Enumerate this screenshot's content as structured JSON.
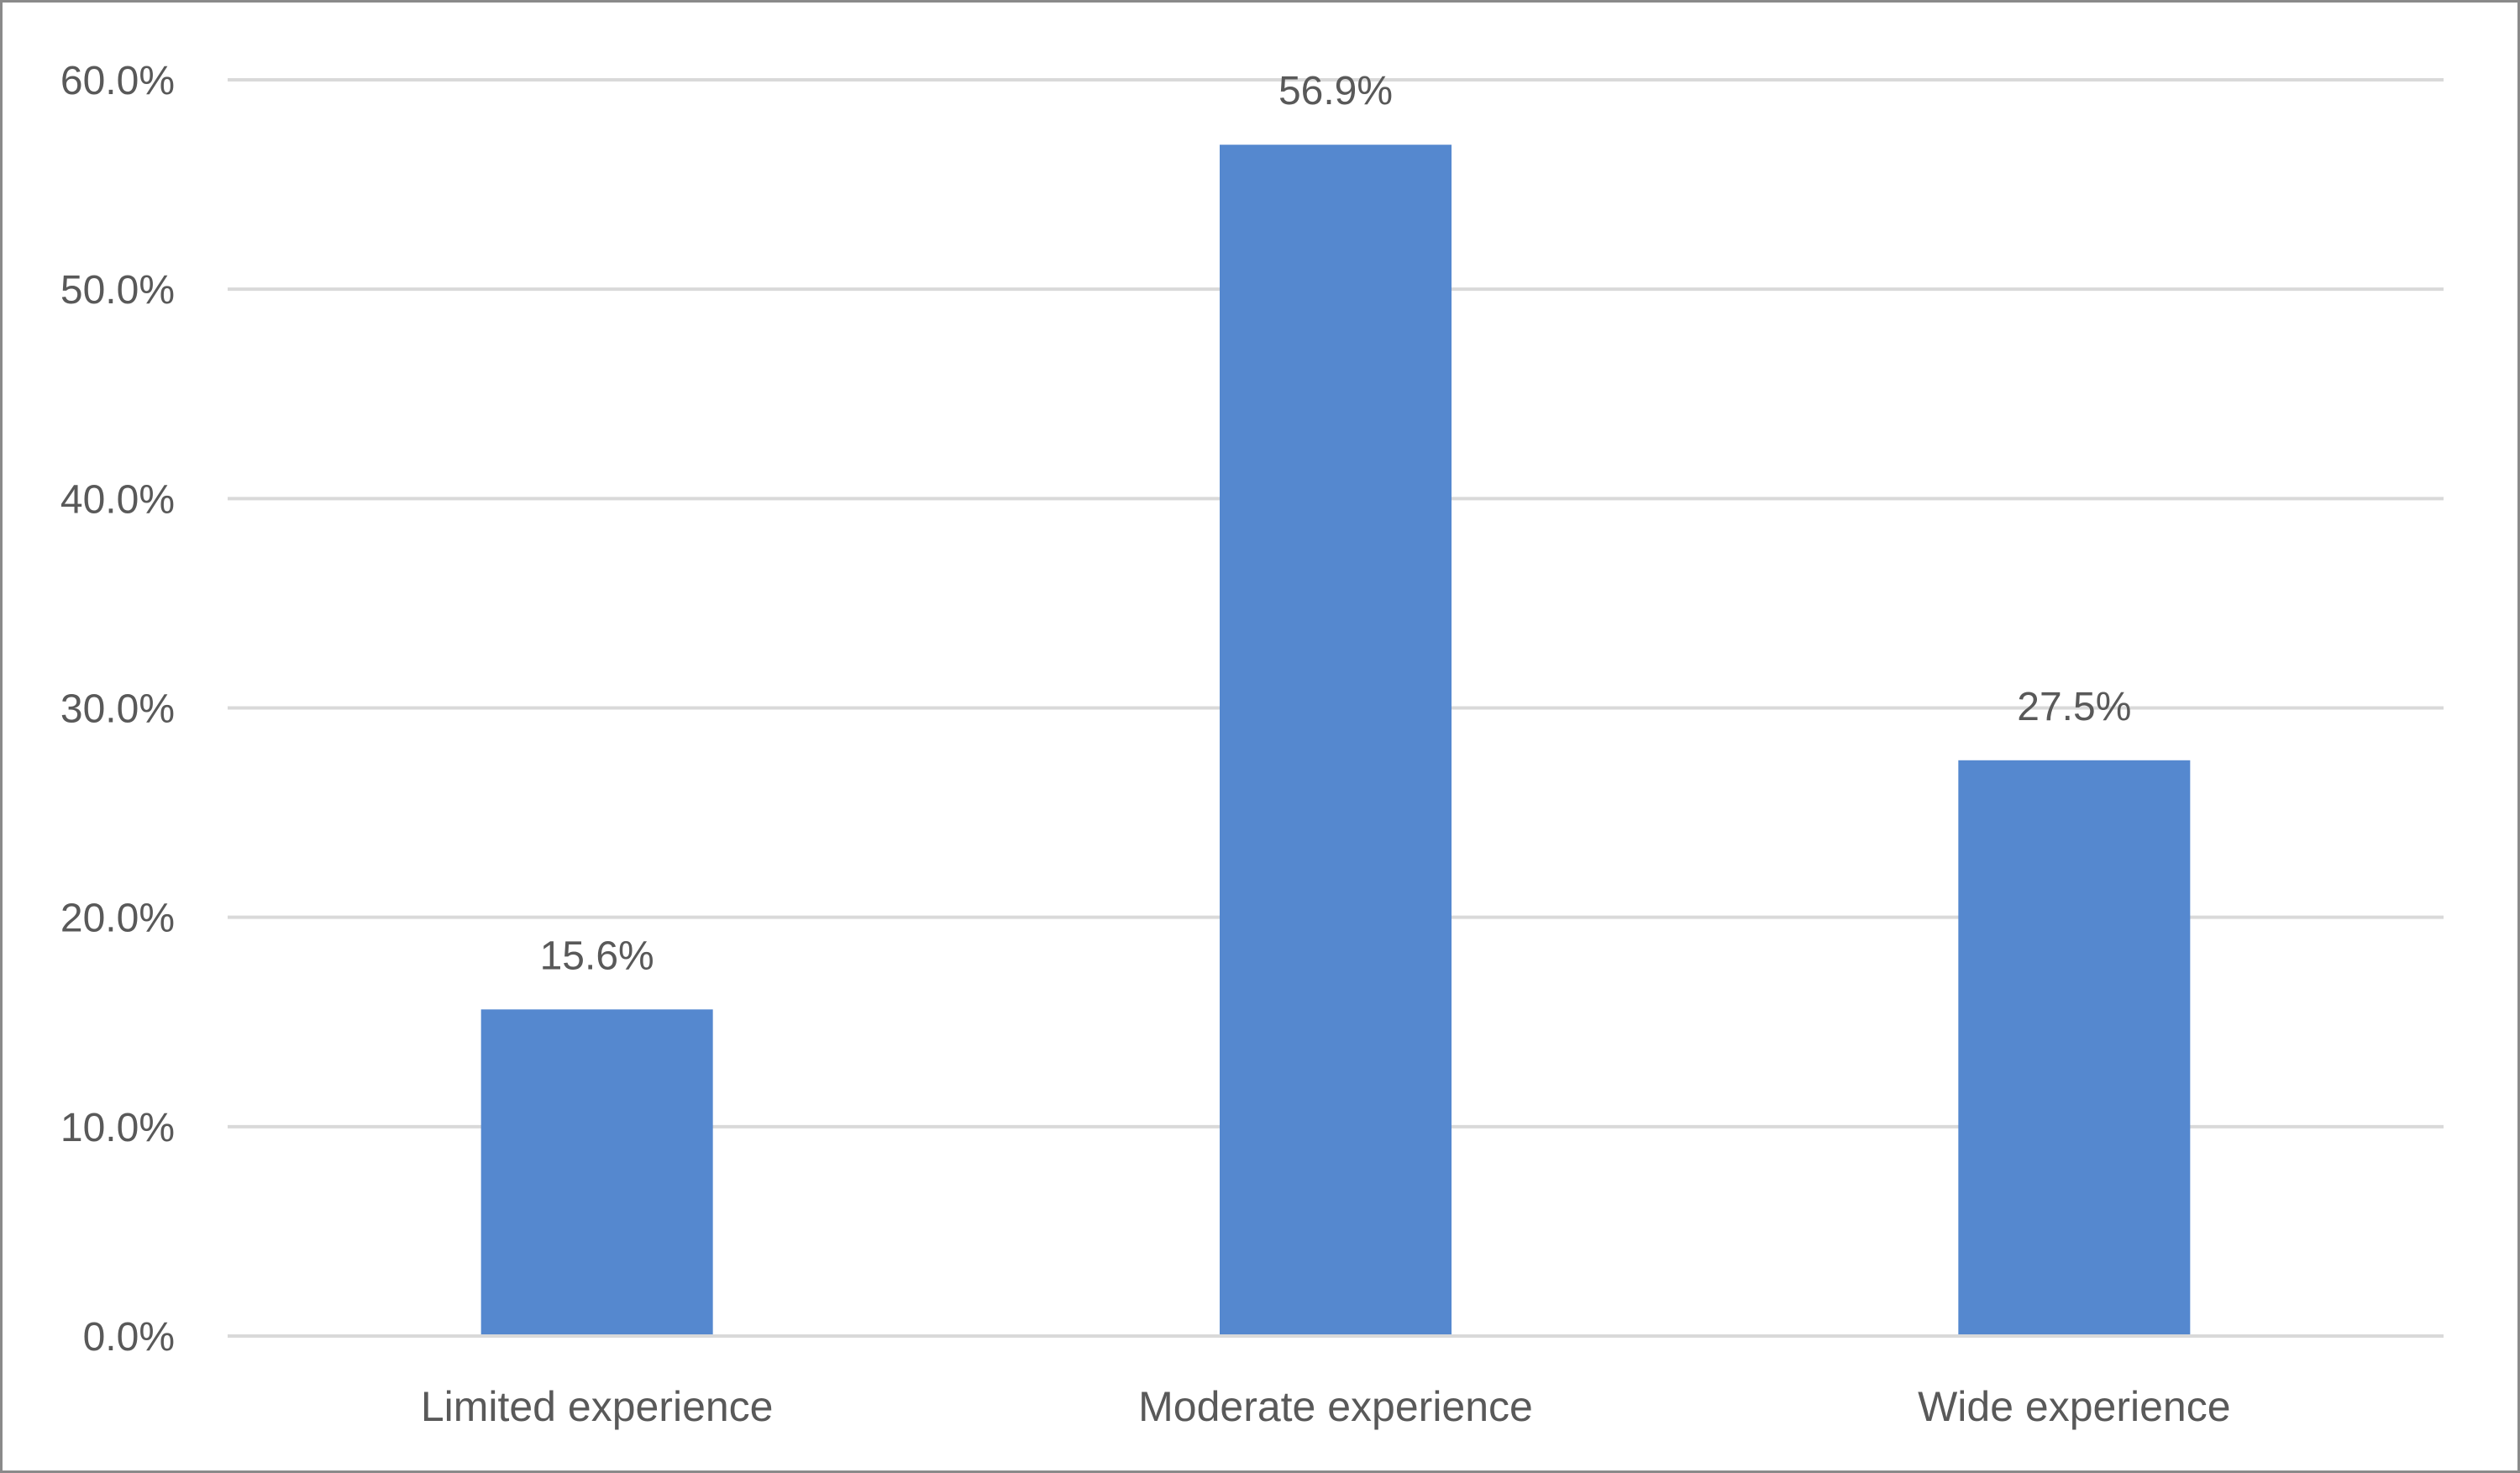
{
  "chart_data": {
    "type": "bar",
    "title": "",
    "xlabel": "",
    "ylabel": "",
    "categories": [
      "Limited experience",
      "Moderate experience",
      "Wide experience"
    ],
    "values": [
      15.6,
      56.9,
      27.5
    ],
    "data_labels": [
      "15.6%",
      "56.9%",
      "27.5%"
    ],
    "ylim": [
      0,
      60
    ],
    "yticks": [
      0,
      10,
      20,
      30,
      40,
      50,
      60
    ],
    "ytick_labels": [
      "0.0%",
      "10.0%",
      "20.0%",
      "30.0%",
      "40.0%",
      "50.0%",
      "60.0%"
    ],
    "grid": true,
    "legend": "none",
    "bar_color": "#5588CF",
    "grid_color": "#D9D9D9"
  }
}
